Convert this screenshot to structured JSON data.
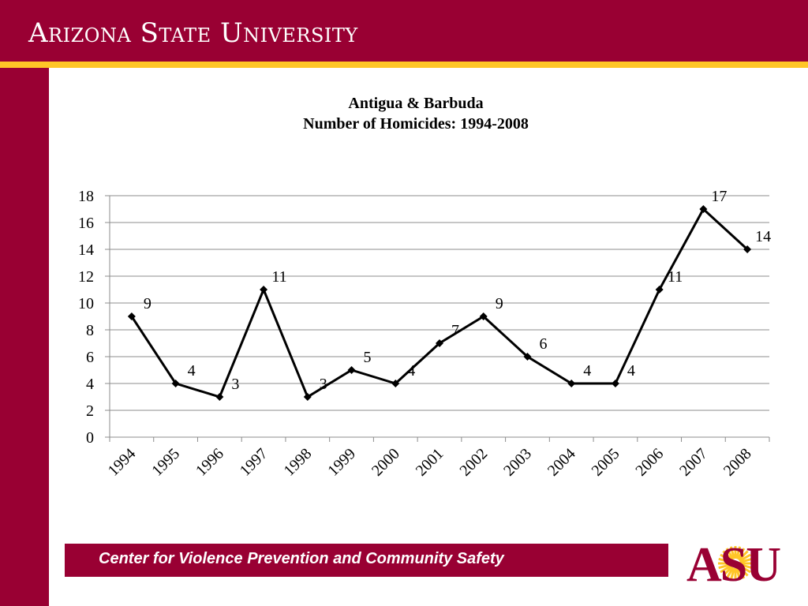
{
  "header": {
    "title": "Arizona State University",
    "color": "#990033",
    "stripe_color": "#FFC627"
  },
  "footer": {
    "text": "Center for Violence Prevention and Community Safety",
    "color": "#990033"
  },
  "logo": {
    "text": "ASU",
    "icon": "asu-sunburst-logo-icon"
  },
  "chart_data": {
    "type": "line",
    "title": "Antigua & Barbuda",
    "subtitle": "Number of Homicides: 1994-2008",
    "categories": [
      "1994",
      "1995",
      "1996",
      "1997",
      "1998",
      "1999",
      "2000",
      "2001",
      "2002",
      "2003",
      "2004",
      "2005",
      "2006",
      "2007",
      "2008"
    ],
    "series": [
      {
        "values": [
          9,
          4,
          3,
          11,
          3,
          5,
          4,
          7,
          9,
          6,
          4,
          4,
          11,
          17,
          14
        ]
      }
    ],
    "ylim": [
      0,
      18
    ],
    "yticks": [
      0,
      2,
      4,
      6,
      8,
      10,
      12,
      14,
      16,
      18
    ],
    "grid": true,
    "data_labels": true,
    "marker": "diamond",
    "line_color": "#000000"
  }
}
